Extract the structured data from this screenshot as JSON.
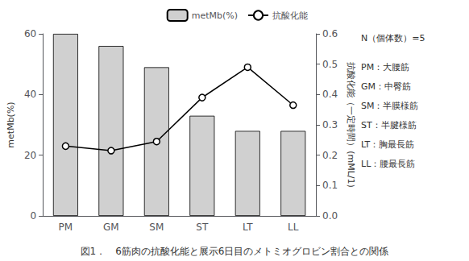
{
  "chart_data": {
    "type": "bar",
    "categories": [
      "PM",
      "GM",
      "SM",
      "ST",
      "LT",
      "LL"
    ],
    "series": [
      {
        "name": "metMb(%)",
        "type": "bar",
        "color": "#d0d0d0",
        "values": [
          60,
          56,
          49,
          33,
          28,
          28
        ]
      },
      {
        "name": "抗酸化能",
        "type": "line",
        "color": "#000000",
        "marker": "o",
        "axis": "y2",
        "values": [
          0.23,
          0.215,
          0.245,
          0.39,
          0.49,
          0.365
        ]
      }
    ],
    "ylabel": "metMb(%)",
    "y2label": "抗酸化能（一定時間）(mML/1)",
    "ylim": [
      0,
      60
    ],
    "yticks": [
      0,
      20,
      40,
      60
    ],
    "y2lim": [
      0.0,
      0.6
    ],
    "y2ticks": [
      {
        "value": 0.0,
        "label": "0.0"
      },
      0.1,
      0.2,
      0.3,
      0.4,
      0.5,
      0.6
    ],
    "annotations": [
      "N（個体数）=5",
      "PM：大腰筋",
      "GM：中臀筋",
      "SM：半膜様筋",
      "ST：半腱様筋",
      "LT：胸最長筋",
      "LL：腰最長筋"
    ],
    "caption": "図1．　6筋肉の抗酸化能と展示6日目のメトミオグロビン割合との関係",
    "legend": "upper right",
    "grid": false
  }
}
